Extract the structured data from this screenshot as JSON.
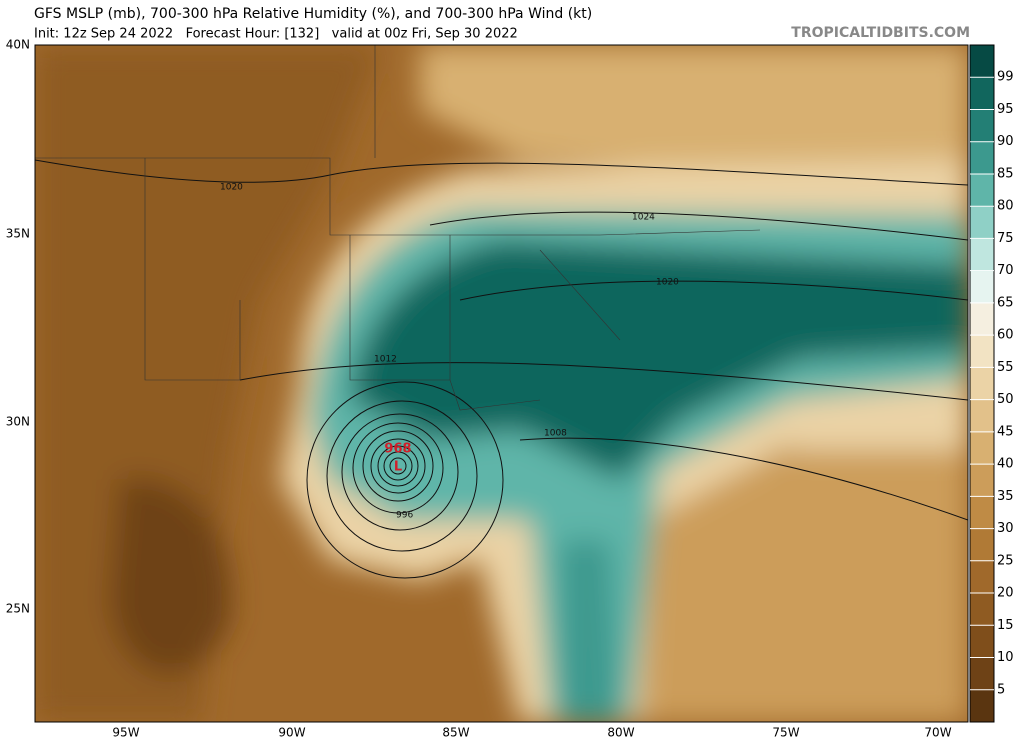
{
  "header": {
    "title": "GFS MSLP (mb), 700-300 hPa Relative Humidity (%), and 700-300 hPa Wind (kt)",
    "subtitle": "Init: 12z Sep 24 2022   Forecast Hour: [132]   valid at 00z Fri, Sep 30 2022",
    "site": "TROPICALTIDBITS.COM"
  },
  "map": {
    "lat_labels": [
      "40N",
      "35N",
      "30N",
      "25N"
    ],
    "lon_labels": [
      "95W",
      "90W",
      "85W",
      "80W",
      "75W",
      "70W"
    ],
    "low_pressure": "968",
    "low_symbol": "L",
    "contour_labels": [
      "1020",
      "1024",
      "1020",
      "1012",
      "1008",
      "996"
    ]
  },
  "colorbar": {
    "ticks": [
      5,
      10,
      15,
      20,
      25,
      30,
      35,
      40,
      45,
      50,
      55,
      60,
      65,
      70,
      75,
      80,
      85,
      90,
      95,
      99
    ],
    "colors": [
      "#5a3510",
      "#6e4216",
      "#7f4e1b",
      "#8f5b22",
      "#a0692b",
      "#b07a36",
      "#bf8b45",
      "#cc9d5a",
      "#d8b071",
      "#e2c18a",
      "#ebd3a6",
      "#f2e3c3",
      "#f5efe0",
      "#e6f4f0",
      "#bfe6df",
      "#8fd0c6",
      "#5fb5a9",
      "#3c998e",
      "#237f75",
      "#11665d",
      "#064a44"
    ]
  }
}
